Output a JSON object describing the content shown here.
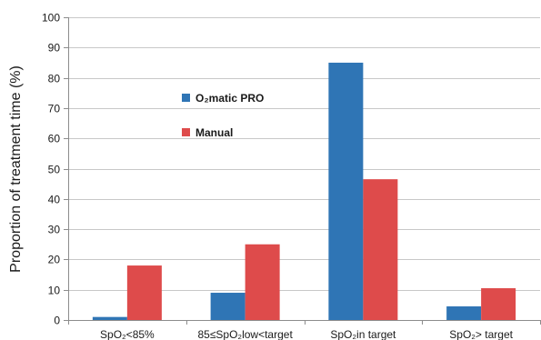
{
  "chart_data": {
    "type": "bar",
    "title": "",
    "xlabel": "",
    "ylabel": "Proportion of treatment time (%)",
    "ylim": [
      0,
      100
    ],
    "yticks": [
      0,
      10,
      20,
      30,
      40,
      50,
      60,
      70,
      80,
      90,
      100
    ],
    "grid": "horizontal",
    "legend_position": "inside-top-left",
    "categories": [
      "SpO₂<85%",
      "85≤SpO₂low<target",
      "SpO₂in target",
      "SpO₂> target"
    ],
    "series": [
      {
        "name": "O₂matic PRO",
        "color": "#2f75b5",
        "values": [
          1,
          9,
          85,
          4.5
        ]
      },
      {
        "name": "Manual",
        "color": "#de4b4b",
        "values": [
          18,
          25,
          46.5,
          10.5
        ]
      }
    ]
  }
}
